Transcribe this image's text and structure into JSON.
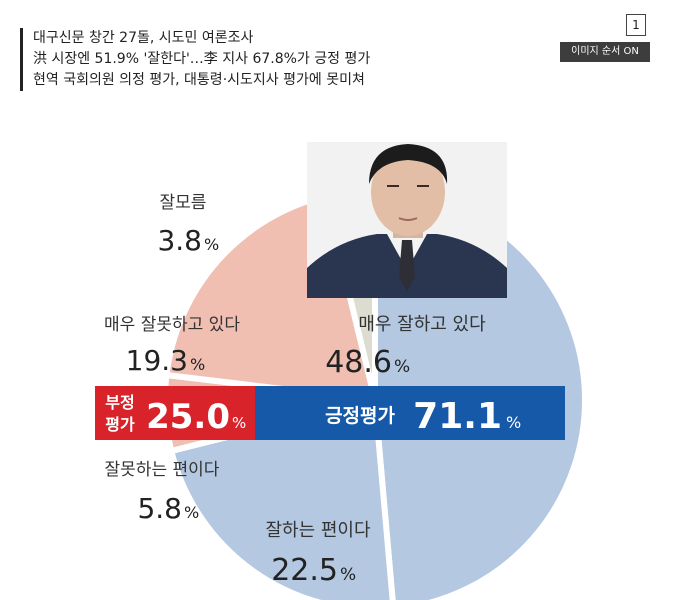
{
  "headline": {
    "line1": "대구신문 창간 27돌, 시도민 여론조사",
    "line2": "洪 시장엔 51.9% '잘한다'…李 지사 67.8%가 긍정 평가",
    "line3": "현역 국회의원 의정 평가, 대통령·시도지사 평가에 못미쳐"
  },
  "controls": {
    "page_number": "1",
    "image_order_label": "이미지 순서 ON"
  },
  "chart_data": {
    "type": "pie",
    "slices": [
      {
        "label": "매우 잘하고 있다",
        "value": 48.6,
        "color": "#b4c8e2"
      },
      {
        "label": "잘하는 편이다",
        "value": 22.5,
        "color": "#b4c8e2"
      },
      {
        "label": "잘못하는 편이다",
        "value": 5.8,
        "color": "#f0bfb2"
      },
      {
        "label": "매우 잘못하고 있다",
        "value": 19.3,
        "color": "#f0bfb2"
      },
      {
        "label": "잘모름",
        "value": 3.8,
        "color": "#dcdcd0"
      }
    ],
    "summary": {
      "positive": {
        "label": "긍정평가",
        "value": 71.1,
        "color": "#1659a8"
      },
      "negative": {
        "label_line1": "부정",
        "label_line2": "평가",
        "value": 25.0,
        "color": "#d8232a"
      }
    },
    "value_texts": {
      "strongly_positive": "48.6",
      "somewhat_positive": "22.5",
      "somewhat_negative": "5.8",
      "strongly_negative": "19.3",
      "unknown": "3.8",
      "positive_total": "71.1",
      "negative_total": "25.0",
      "unit": "%"
    }
  }
}
